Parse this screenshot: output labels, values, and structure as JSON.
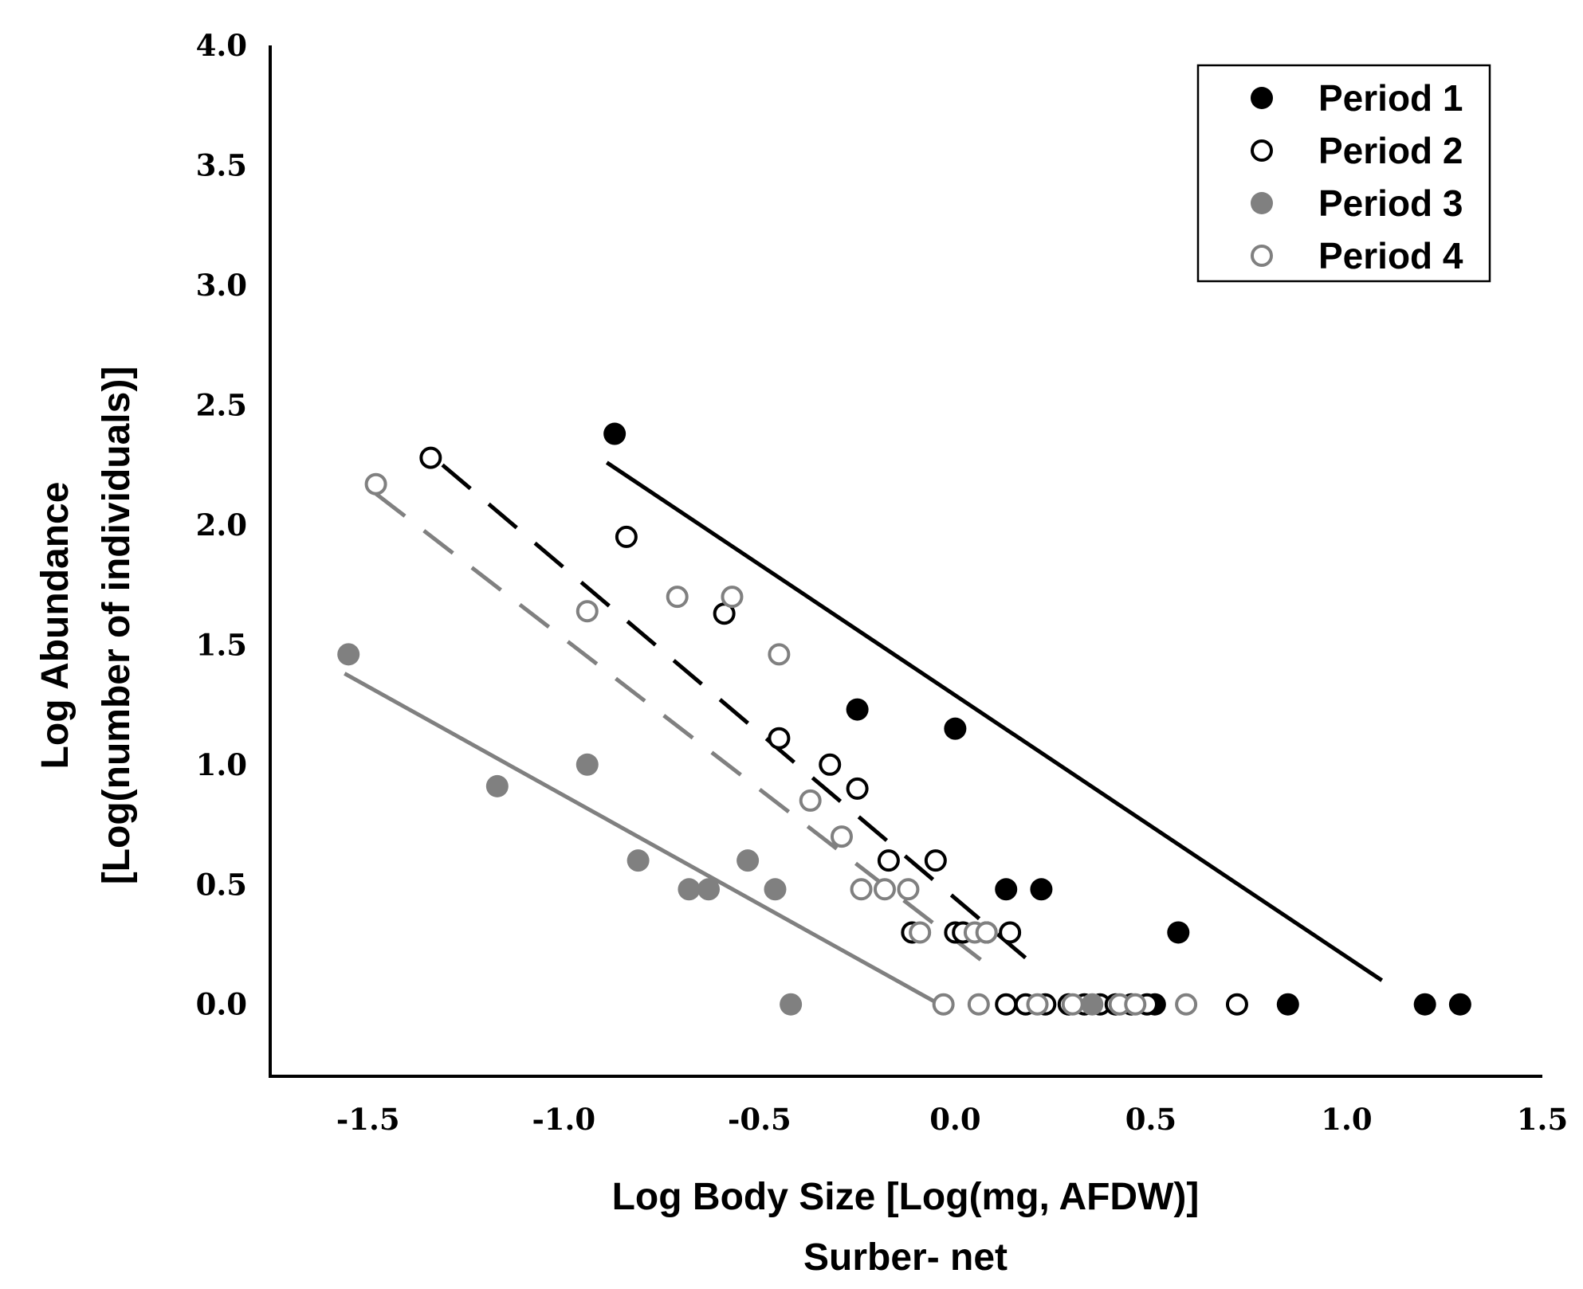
{
  "chart_data": {
    "type": "scatter",
    "xlabel": "Log Body Size  [Log(mg, AFDW)]",
    "xlabel_sub": "Surber- net",
    "ylabel": "Log Abundance",
    "ylabel_sub": "[Log(number of individuals)]",
    "xlim": [
      -1.75,
      1.5
    ],
    "ylim": [
      -0.3,
      4.0
    ],
    "x_ticks": [
      "-1.5",
      "-1.0",
      "-0.5",
      "0.0",
      "0.5",
      "1.0",
      "1.5"
    ],
    "x_tick_values": [
      -1.5,
      -1.0,
      -0.5,
      0.0,
      0.5,
      1.0,
      1.5
    ],
    "y_ticks": [
      "0.0",
      "0.5",
      "1.0",
      "1.5",
      "2.0",
      "2.5",
      "3.0",
      "3.5",
      "4.0"
    ],
    "y_tick_values": [
      0.0,
      0.5,
      1.0,
      1.5,
      2.0,
      2.5,
      3.0,
      3.5,
      4.0
    ],
    "grid": false,
    "legend_position": "top-right",
    "series": [
      {
        "name": "Period 1",
        "marker": "filled",
        "color": "#000000",
        "points": [
          [
            -0.87,
            2.38
          ],
          [
            -0.25,
            1.23
          ],
          [
            0.0,
            1.15
          ],
          [
            0.13,
            0.48
          ],
          [
            0.22,
            0.48
          ],
          [
            0.57,
            0.3
          ],
          [
            0.51,
            0.0
          ],
          [
            0.85,
            0.0
          ],
          [
            1.2,
            0.0
          ],
          [
            1.29,
            0.0
          ]
        ],
        "fit": {
          "style": "solid",
          "x": [
            -0.89,
            1.09
          ],
          "y": [
            2.26,
            0.1
          ]
        }
      },
      {
        "name": "Period 2",
        "marker": "open",
        "color": "#000000",
        "points": [
          [
            -1.34,
            2.28
          ],
          [
            -0.84,
            1.95
          ],
          [
            -0.59,
            1.63
          ],
          [
            -0.45,
            1.11
          ],
          [
            -0.32,
            1.0
          ],
          [
            -0.25,
            0.9
          ],
          [
            -0.17,
            0.6
          ],
          [
            -0.05,
            0.6
          ],
          [
            -0.11,
            0.3
          ],
          [
            0.0,
            0.3
          ],
          [
            0.02,
            0.3
          ],
          [
            0.08,
            0.3
          ],
          [
            0.14,
            0.3
          ],
          [
            0.13,
            0.0
          ],
          [
            0.18,
            0.0
          ],
          [
            0.23,
            0.0
          ],
          [
            0.29,
            0.0
          ],
          [
            0.33,
            0.0
          ],
          [
            0.37,
            0.0
          ],
          [
            0.41,
            0.0
          ],
          [
            0.45,
            0.0
          ],
          [
            0.49,
            0.0
          ],
          [
            0.72,
            0.0
          ]
        ],
        "fit": {
          "style": "dashed",
          "x": [
            -1.31,
            0.19
          ],
          "y": [
            2.25,
            0.18
          ]
        }
      },
      {
        "name": "Period 3",
        "marker": "filled",
        "color": "#808080",
        "points": [
          [
            -1.55,
            1.46
          ],
          [
            -1.17,
            0.91
          ],
          [
            -0.94,
            1.0
          ],
          [
            -0.81,
            0.6
          ],
          [
            -0.68,
            0.48
          ],
          [
            -0.63,
            0.48
          ],
          [
            -0.53,
            0.6
          ],
          [
            -0.46,
            0.48
          ],
          [
            -0.42,
            0.0
          ],
          [
            0.35,
            0.0
          ]
        ],
        "fit": {
          "style": "solid",
          "x": [
            -1.56,
            -0.04
          ],
          "y": [
            1.38,
            0.0
          ]
        }
      },
      {
        "name": "Period 4",
        "marker": "open",
        "color": "#808080",
        "points": [
          [
            -1.48,
            2.17
          ],
          [
            -0.94,
            1.64
          ],
          [
            -0.71,
            1.7
          ],
          [
            -0.57,
            1.7
          ],
          [
            -0.45,
            1.46
          ],
          [
            -0.37,
            0.85
          ],
          [
            -0.29,
            0.7
          ],
          [
            -0.24,
            0.48
          ],
          [
            -0.18,
            0.48
          ],
          [
            -0.12,
            0.48
          ],
          [
            -0.09,
            0.3
          ],
          [
            0.05,
            0.3
          ],
          [
            0.08,
            0.3
          ],
          [
            -0.03,
            0.0
          ],
          [
            0.06,
            0.0
          ],
          [
            0.21,
            0.0
          ],
          [
            0.3,
            0.0
          ],
          [
            0.42,
            0.0
          ],
          [
            0.46,
            0.0
          ],
          [
            0.59,
            0.0
          ]
        ],
        "fit": {
          "style": "dashed",
          "x": [
            -1.48,
            0.11
          ],
          "y": [
            2.13,
            0.13
          ]
        }
      }
    ]
  }
}
